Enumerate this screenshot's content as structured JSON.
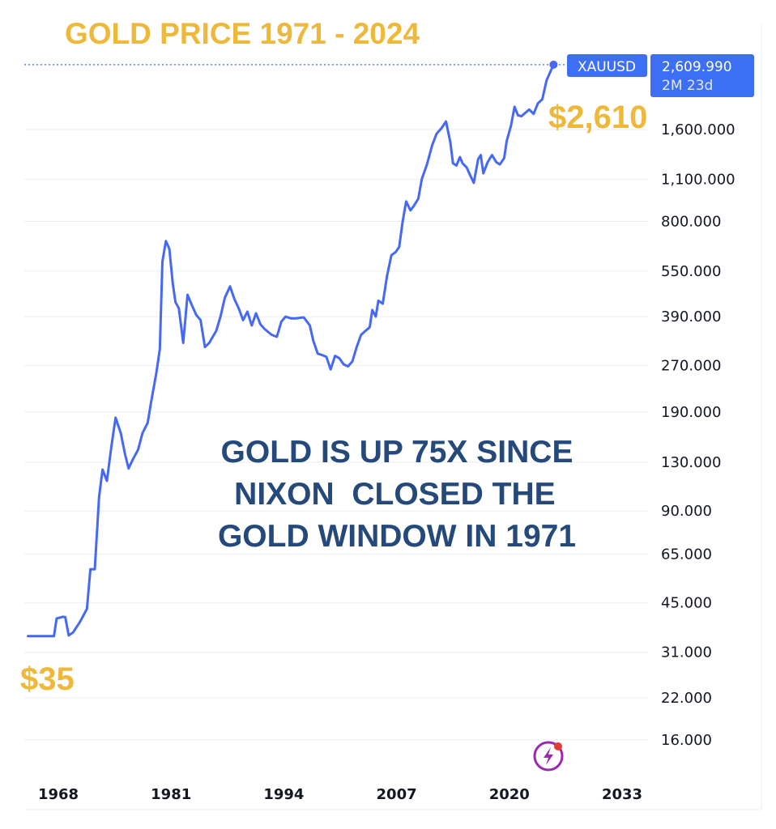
{
  "chart_data": {
    "type": "line",
    "title": "GOLD PRICE 1971 - 2024",
    "yscale": "log",
    "ylim": [
      13.5,
      2700
    ],
    "xlim": [
      1964.5,
      2036
    ],
    "y_ticks": [
      16,
      22,
      31,
      45,
      65,
      90,
      130,
      190,
      270,
      390,
      550,
      800,
      1100,
      1600
    ],
    "y_tick_labels": [
      "16.000",
      "22.000",
      "31.000",
      "45.000",
      "65.000",
      "90.000",
      "130.000",
      "190.000",
      "270.000",
      "390.000",
      "550.000",
      "800.000",
      "1,100.000",
      "1,600.000"
    ],
    "x_ticks": [
      1968,
      1981,
      1994,
      2007,
      2020,
      2033
    ],
    "x_tick_labels": [
      "1968",
      "1981",
      "1994",
      "2007",
      "2020",
      "2033"
    ],
    "grid": "horizontal",
    "series": [
      {
        "color": "#4669f5",
        "points": [
          [
            1964.5,
            35
          ],
          [
            1966,
            35
          ],
          [
            1967.5,
            35
          ],
          [
            1967.8,
            40
          ],
          [
            1968.5,
            40.5
          ],
          [
            1968.8,
            40.4
          ],
          [
            1969.2,
            35.2
          ],
          [
            1969.7,
            36
          ],
          [
            1970.5,
            39
          ],
          [
            1971.3,
            43
          ],
          [
            1971.7,
            58
          ],
          [
            1972.2,
            58
          ],
          [
            1972.7,
            100
          ],
          [
            1973.1,
            123
          ],
          [
            1973.6,
            113
          ],
          [
            1974.1,
            145
          ],
          [
            1974.6,
            182
          ],
          [
            1975.2,
            162
          ],
          [
            1975.7,
            138
          ],
          [
            1976.1,
            124
          ],
          [
            1976.6,
            133
          ],
          [
            1977.2,
            143
          ],
          [
            1977.7,
            162
          ],
          [
            1978.3,
            175
          ],
          [
            1978.7,
            205
          ],
          [
            1979.3,
            255
          ],
          [
            1979.7,
            305
          ],
          [
            1980.0,
            590
          ],
          [
            1980.4,
            690
          ],
          [
            1980.8,
            650
          ],
          [
            1981.2,
            500
          ],
          [
            1981.5,
            435
          ],
          [
            1981.9,
            415
          ],
          [
            1982.4,
            320
          ],
          [
            1982.9,
            460
          ],
          [
            1983.4,
            425
          ],
          [
            1983.9,
            395
          ],
          [
            1984.4,
            380
          ],
          [
            1984.9,
            310
          ],
          [
            1985.4,
            320
          ],
          [
            1986.2,
            350
          ],
          [
            1986.7,
            390
          ],
          [
            1987.2,
            450
          ],
          [
            1987.8,
            490
          ],
          [
            1988.3,
            445
          ],
          [
            1988.8,
            415
          ],
          [
            1989.3,
            380
          ],
          [
            1989.8,
            405
          ],
          [
            1990.3,
            365
          ],
          [
            1990.8,
            400
          ],
          [
            1991.3,
            368
          ],
          [
            1991.8,
            355
          ],
          [
            1992.6,
            340
          ],
          [
            1993.2,
            335
          ],
          [
            1993.7,
            375
          ],
          [
            1994.2,
            390
          ],
          [
            1994.8,
            385
          ],
          [
            1995.4,
            385
          ],
          [
            1996.3,
            388
          ],
          [
            1997.0,
            365
          ],
          [
            1997.4,
            325
          ],
          [
            1997.9,
            295
          ],
          [
            1998.4,
            292
          ],
          [
            1998.9,
            288
          ],
          [
            1999.4,
            262
          ],
          [
            1999.9,
            290
          ],
          [
            2000.4,
            285
          ],
          [
            2000.9,
            272
          ],
          [
            2001.4,
            268
          ],
          [
            2001.9,
            278
          ],
          [
            2002.4,
            310
          ],
          [
            2002.9,
            340
          ],
          [
            2003.4,
            350
          ],
          [
            2003.9,
            360
          ],
          [
            2004.2,
            410
          ],
          [
            2004.6,
            390
          ],
          [
            2004.9,
            440
          ],
          [
            2005.4,
            430
          ],
          [
            2005.9,
            530
          ],
          [
            2006.4,
            620
          ],
          [
            2006.9,
            635
          ],
          [
            2007.3,
            660
          ],
          [
            2007.7,
            800
          ],
          [
            2008.1,
            930
          ],
          [
            2008.6,
            870
          ],
          [
            2009.0,
            900
          ],
          [
            2009.5,
            950
          ],
          [
            2009.9,
            1100
          ],
          [
            2010.5,
            1230
          ],
          [
            2011.1,
            1420
          ],
          [
            2011.6,
            1550
          ],
          [
            2012.2,
            1620
          ],
          [
            2012.7,
            1700
          ],
          [
            2013.2,
            1450
          ],
          [
            2013.5,
            1240
          ],
          [
            2013.9,
            1220
          ],
          [
            2014.3,
            1300
          ],
          [
            2014.6,
            1240
          ],
          [
            2015.1,
            1200
          ],
          [
            2015.5,
            1130
          ],
          [
            2015.9,
            1070
          ],
          [
            2016.4,
            1280
          ],
          [
            2016.7,
            1320
          ],
          [
            2017.0,
            1150
          ],
          [
            2017.5,
            1250
          ],
          [
            2018.0,
            1320
          ],
          [
            2018.5,
            1250
          ],
          [
            2018.9,
            1230
          ],
          [
            2019.4,
            1290
          ],
          [
            2019.7,
            1470
          ],
          [
            2020.2,
            1650
          ],
          [
            2020.6,
            1900
          ],
          [
            2021.0,
            1780
          ],
          [
            2021.4,
            1770
          ],
          [
            2021.8,
            1810
          ],
          [
            2022.3,
            1860
          ],
          [
            2022.8,
            1800
          ],
          [
            2023.3,
            1950
          ],
          [
            2023.8,
            2010
          ],
          [
            2024.3,
            2320
          ],
          [
            2024.8,
            2500
          ],
          [
            2025.1,
            2609.99
          ]
        ]
      }
    ],
    "last_value_badge": {
      "symbol": "XAUUSD",
      "value": "2,609.990",
      "countdown": "2M 23d",
      "color": "#3d6ff5"
    },
    "annotations": {
      "end_label": "$2,610",
      "start_label": "$35",
      "note_lines": [
        "GOLD IS UP 75X SINCE",
        " NIXON  CLOSED THE",
        "GOLD WINDOW IN 1971"
      ]
    },
    "colors": {
      "title": "#eeb83b",
      "labels": "#eeb83b",
      "note": "#24497a",
      "line": "#4669f5",
      "grid": "#eceef3"
    }
  }
}
